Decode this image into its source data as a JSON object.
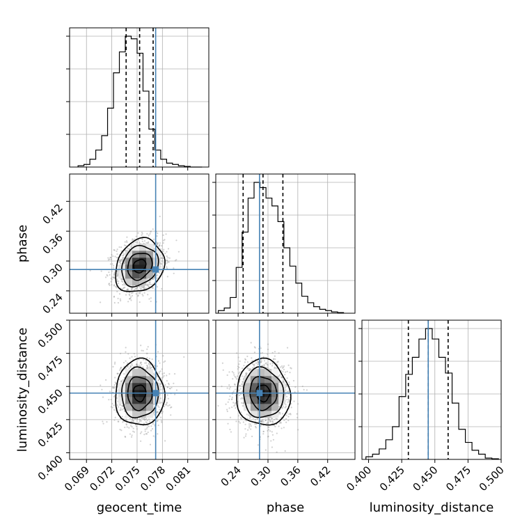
{
  "chart_data": {
    "type": "corner",
    "parameters": [
      {
        "name": "geocent_time",
        "range": [
          0.067,
          0.0835
        ],
        "ticks": [
          "0.069",
          "0.072",
          "0.075",
          "0.078",
          "0.081"
        ],
        "tick_values": [
          0.069,
          0.072,
          0.075,
          0.078,
          0.081
        ],
        "truth": 0.0772,
        "quantiles": [
          0.0737,
          0.0753,
          0.0769
        ],
        "histogram": {
          "edges": [
            0.068,
            0.0687,
            0.0694,
            0.0701,
            0.0708,
            0.0715,
            0.0722,
            0.0729,
            0.0736,
            0.0743,
            0.075,
            0.0757,
            0.0764,
            0.0771,
            0.0778,
            0.0785,
            0.0792,
            0.0799,
            0.0806,
            0.0813,
            0.082,
            0.0827
          ],
          "counts": [
            0.01,
            0.02,
            0.06,
            0.13,
            0.24,
            0.45,
            0.72,
            0.88,
            1.0,
            0.98,
            0.87,
            0.58,
            0.29,
            0.13,
            0.06,
            0.03,
            0.02,
            0.01,
            0.005,
            0,
            0
          ]
        }
      },
      {
        "name": "phase",
        "range": [
          0.195,
          0.475
        ],
        "ticks": [
          "0.24",
          "0.30",
          "0.36",
          "0.42"
        ],
        "tick_values": [
          0.24,
          0.3,
          0.36,
          0.42
        ],
        "truth": 0.283,
        "quantiles": [
          0.25,
          0.29,
          0.33
        ],
        "histogram": {
          "edges": [
            0.2,
            0.212,
            0.224,
            0.236,
            0.248,
            0.26,
            0.272,
            0.284,
            0.296,
            0.308,
            0.32,
            0.332,
            0.344,
            0.356,
            0.368,
            0.38,
            0.392,
            0.404,
            0.416,
            0.428,
            0.44,
            0.452
          ],
          "counts": [
            0.02,
            0.04,
            0.12,
            0.35,
            0.62,
            0.88,
            1.0,
            0.96,
            0.88,
            0.82,
            0.7,
            0.5,
            0.36,
            0.23,
            0.13,
            0.08,
            0.05,
            0.03,
            0.02,
            0.01,
            0.005
          ]
        }
      },
      {
        "name": "luminosity_distance",
        "range": [
          0.395,
          0.5
        ],
        "ticks": [
          "0.400",
          "0.425",
          "0.450",
          "0.475",
          "0.500"
        ],
        "tick_values": [
          0.4,
          0.425,
          0.45,
          0.475,
          0.5
        ],
        "truth": 0.445,
        "quantiles": [
          0.43,
          0.445,
          0.46
        ],
        "histogram": {
          "edges": [
            0.398,
            0.403,
            0.408,
            0.413,
            0.418,
            0.423,
            0.428,
            0.433,
            0.438,
            0.443,
            0.448,
            0.453,
            0.458,
            0.463,
            0.468,
            0.473,
            0.478,
            0.483,
            0.488,
            0.493,
            0.498
          ],
          "counts": [
            0.02,
            0.04,
            0.08,
            0.15,
            0.25,
            0.48,
            0.65,
            0.78,
            0.92,
            1.0,
            0.92,
            0.78,
            0.66,
            0.43,
            0.23,
            0.13,
            0.07,
            0.04,
            0.01,
            0.005
          ]
        }
      }
    ],
    "pairs": [
      {
        "x": "geocent_time",
        "y": "phase",
        "mean": [
          0.0753,
          0.29
        ],
        "std": [
          0.00145,
          0.027
        ],
        "correlation": 0.2
      },
      {
        "x": "geocent_time",
        "y": "luminosity_distance",
        "mean": [
          0.0753,
          0.445
        ],
        "std": [
          0.00145,
          0.0125
        ],
        "correlation": 0.0
      },
      {
        "x": "phase",
        "y": "luminosity_distance",
        "mean": [
          0.29,
          0.445
        ],
        "std": [
          0.027,
          0.0125
        ],
        "correlation": -0.05
      }
    ],
    "contour_levels_sigma": [
      0.5,
      1.0,
      1.5,
      2.0
    ],
    "grid": true,
    "truth_color": "#4682b4"
  }
}
